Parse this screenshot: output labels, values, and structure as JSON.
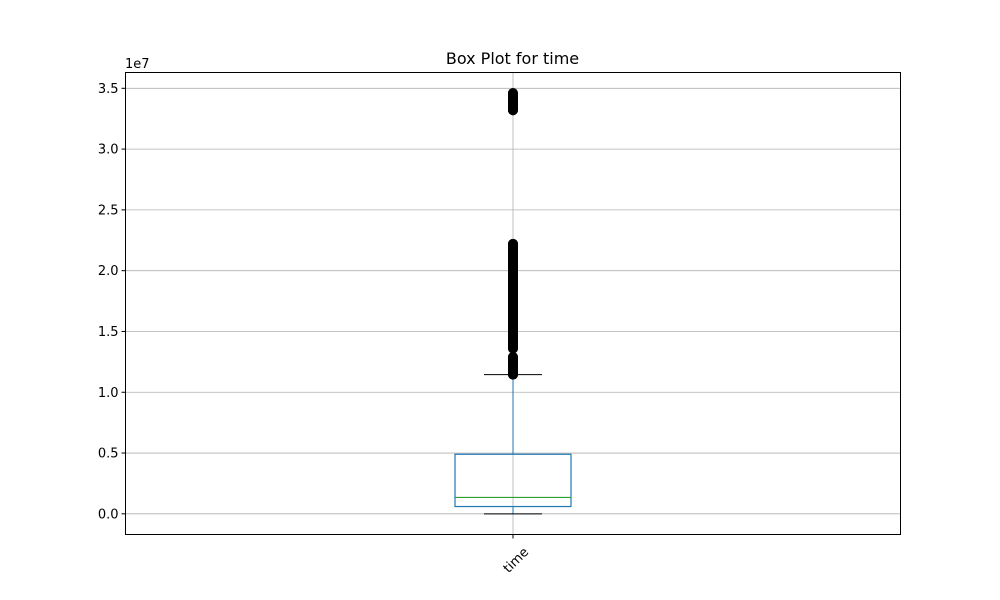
{
  "chart_data": {
    "type": "box",
    "title": "Box Plot for time",
    "categories": [
      "time"
    ],
    "y_tick_labels": [
      "0.0",
      "0.5",
      "1.0",
      "1.5",
      "2.0",
      "2.5",
      "3.0",
      "3.5"
    ],
    "y_offset_label": "1e7",
    "ylim": [
      -1700000,
      36300000
    ],
    "grid": true,
    "boxes": [
      {
        "name": "time",
        "whisker_low": 0,
        "q1": 600000,
        "median": 1350000,
        "q3": 4900000,
        "whisker_high": 11450000,
        "outlier_ranges": [
          [
            11450000,
            12900000
          ],
          [
            13600000,
            22200000
          ],
          [
            33200000,
            34600000
          ]
        ]
      }
    ],
    "colors": {
      "box": "#1f77b4",
      "median": "#2ca02c",
      "whisker": "#1f77b4",
      "cap": "#000000",
      "outlier": "#000000",
      "grid": "#b0b0b0"
    }
  }
}
